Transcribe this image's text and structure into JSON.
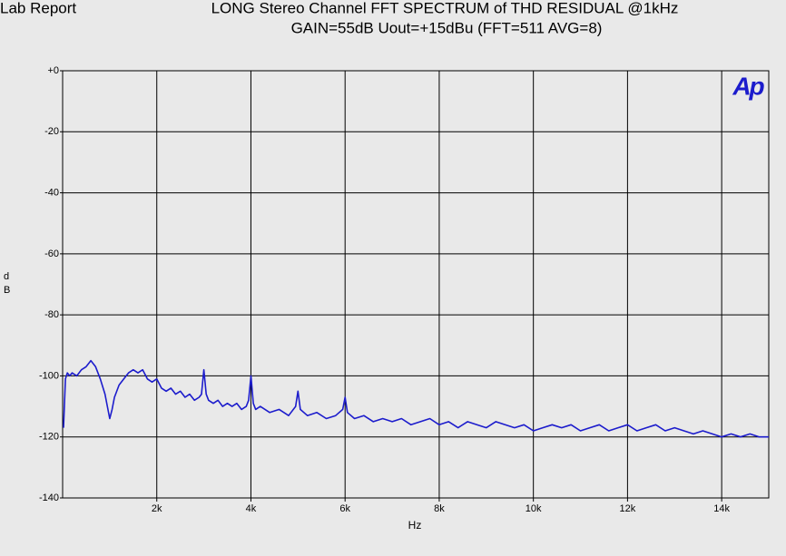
{
  "report_label": "Lab Report",
  "chart_data": {
    "type": "line",
    "title": "LONG Stereo Channel FFT SPECTRUM of THD RESIDUAL  @1kHz",
    "subtitle": "GAIN=55dB Uout=+15dBu  (FFT=511 AVG=8)",
    "logo": "Ap",
    "xlabel": "Hz",
    "ylabel": "dB",
    "color": "#1c1ccc",
    "grid": true,
    "xlim": [
      0,
      15000
    ],
    "ylim": [
      -140,
      0
    ],
    "xticks": [
      {
        "value": 2000,
        "label": "2k"
      },
      {
        "value": 4000,
        "label": "4k"
      },
      {
        "value": 6000,
        "label": "6k"
      },
      {
        "value": 8000,
        "label": "8k"
      },
      {
        "value": 10000,
        "label": "10k"
      },
      {
        "value": 12000,
        "label": "12k"
      },
      {
        "value": 14000,
        "label": "14k"
      }
    ],
    "yticks": [
      {
        "value": 0,
        "label": "+0"
      },
      -20,
      -40,
      -60,
      -80,
      -100,
      -120,
      -140
    ],
    "x": [
      20,
      60,
      100,
      150,
      200,
      300,
      400,
      500,
      600,
      700,
      800,
      900,
      950,
      1000,
      1050,
      1100,
      1200,
      1300,
      1400,
      1500,
      1600,
      1700,
      1800,
      1900,
      2000,
      2100,
      2200,
      2300,
      2400,
      2500,
      2600,
      2700,
      2800,
      2900,
      2950,
      3000,
      3050,
      3100,
      3200,
      3300,
      3400,
      3500,
      3600,
      3700,
      3800,
      3900,
      3950,
      4000,
      4050,
      4100,
      4200,
      4400,
      4600,
      4800,
      4950,
      5000,
      5050,
      5200,
      5400,
      5600,
      5800,
      5950,
      6000,
      6050,
      6200,
      6400,
      6600,
      6800,
      7000,
      7200,
      7400,
      7600,
      7800,
      8000,
      8200,
      8400,
      8600,
      8800,
      9000,
      9200,
      9400,
      9600,
      9800,
      10000,
      10200,
      10400,
      10600,
      10800,
      11000,
      11200,
      11400,
      11600,
      11800,
      12000,
      12200,
      12400,
      12600,
      12800,
      13000,
      13200,
      13400,
      13600,
      13800,
      14000,
      14200,
      14400,
      14600,
      14800,
      15000
    ],
    "values": [
      -117,
      -101,
      -99,
      -100,
      -99,
      -100,
      -98,
      -97,
      -95,
      -97,
      -101,
      -106,
      -110,
      -114,
      -111,
      -107,
      -103,
      -101,
      -99,
      -98,
      -99,
      -98,
      -101,
      -102,
      -101,
      -104,
      -105,
      -104,
      -106,
      -105,
      -107,
      -106,
      -108,
      -107,
      -106,
      -98,
      -106,
      -108,
      -109,
      -108,
      -110,
      -109,
      -110,
      -109,
      -111,
      -110,
      -108,
      -100,
      -109,
      -111,
      -110,
      -112,
      -111,
      -113,
      -110,
      -105,
      -111,
      -113,
      -112,
      -114,
      -113,
      -111,
      -107,
      -112,
      -114,
      -113,
      -115,
      -114,
      -115,
      -114,
      -116,
      -115,
      -114,
      -116,
      -115,
      -117,
      -115,
      -116,
      -117,
      -115,
      -116,
      -117,
      -116,
      -118,
      -117,
      -116,
      -117,
      -116,
      -118,
      -117,
      -116,
      -118,
      -117,
      -116,
      -118,
      -117,
      -116,
      -118,
      -117,
      -118,
      -119,
      -118,
      -119,
      -120,
      -119,
      -120,
      -119,
      -120,
      -120
    ]
  }
}
